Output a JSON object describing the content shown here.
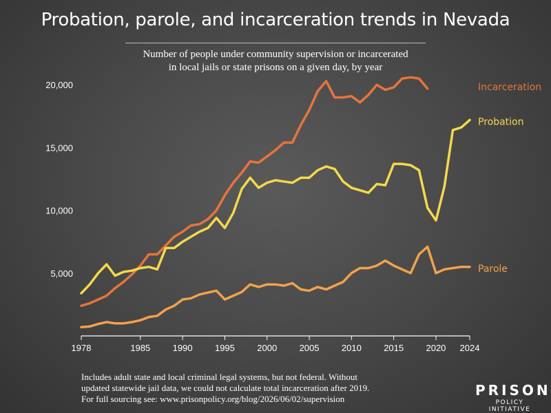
{
  "title": "Probation, parole, and incarceration trends in Nevada",
  "subtitle_line1": "Number of people under community supervision or incarcerated",
  "subtitle_line2": "in local jails or state prisons on a given day, by year",
  "footnote_line1": "Includes adult state and local criminal legal systems, but not federal. Without",
  "footnote_line2": "updated statewide jail data, we could not calculate total incarceration after 2019.",
  "footnote_line3": "For full sourcing see: www.prisonpolicy.org/blog/2026/06/02/supervision",
  "logo": {
    "main": "PRISON",
    "sub": "POLICY INITIATIVE"
  },
  "colors": {
    "incarceration": "#e8743b",
    "probation": "#f5d94a",
    "parole": "#f3a24b",
    "axis": "#ffffff"
  },
  "chart_data": {
    "type": "line",
    "xlim": [
      1978,
      2024
    ],
    "ylim": [
      0,
      21000
    ],
    "x_ticks": [
      1978,
      1985,
      1990,
      1995,
      2000,
      2005,
      2010,
      2015,
      2020,
      2024
    ],
    "y_ticks": [
      5000,
      10000,
      15000,
      20000
    ],
    "y_tick_labels": [
      "5,000",
      "10,000",
      "15,000",
      "20,000"
    ],
    "series": [
      {
        "name": "Incarceration",
        "color": "#e8743b",
        "x": [
          1978,
          1979,
          1980,
          1981,
          1982,
          1983,
          1984,
          1985,
          1986,
          1987,
          1988,
          1989,
          1990,
          1991,
          1992,
          1993,
          1994,
          1995,
          1996,
          1997,
          1998,
          1999,
          2000,
          2001,
          2002,
          2003,
          2004,
          2005,
          2006,
          2007,
          2008,
          2009,
          2010,
          2011,
          2012,
          2013,
          2014,
          2015,
          2016,
          2017,
          2018,
          2019
        ],
        "y": [
          2400,
          2600,
          2900,
          3200,
          3800,
          4300,
          4900,
          5600,
          6500,
          6500,
          7200,
          7900,
          8300,
          8800,
          8900,
          9300,
          10000,
          11200,
          12200,
          13000,
          13900,
          13800,
          14300,
          14800,
          15400,
          15400,
          16800,
          18000,
          19500,
          20300,
          19000,
          19000,
          19100,
          18600,
          19200,
          20000,
          19600,
          19800,
          20500,
          20600,
          20500,
          19700
        ]
      },
      {
        "name": "Probation",
        "color": "#f5d94a",
        "x": [
          1978,
          1979,
          1980,
          1981,
          1982,
          1983,
          1984,
          1985,
          1986,
          1987,
          1988,
          1989,
          1990,
          1991,
          1992,
          1993,
          1994,
          1995,
          1996,
          1997,
          1998,
          1999,
          2000,
          2001,
          2002,
          2003,
          2004,
          2005,
          2006,
          2007,
          2008,
          2009,
          2010,
          2011,
          2012,
          2013,
          2014,
          2015,
          2016,
          2017,
          2018,
          2019,
          2020,
          2021,
          2022,
          2023,
          2024
        ],
        "y": [
          3400,
          4100,
          5000,
          5700,
          4800,
          5100,
          5200,
          5400,
          5500,
          5300,
          7000,
          7000,
          7500,
          7900,
          8300,
          8600,
          9400,
          8600,
          9800,
          11700,
          12600,
          11800,
          12200,
          12400,
          12300,
          12200,
          12600,
          12600,
          13200,
          13500,
          13300,
          12300,
          11800,
          11600,
          11400,
          12100,
          12000,
          13700,
          13700,
          13600,
          13200,
          10200,
          9200,
          11900,
          16400,
          16600,
          17200
        ]
      },
      {
        "name": "Parole",
        "color": "#f3a24b",
        "x": [
          1978,
          1979,
          1980,
          1981,
          1982,
          1983,
          1984,
          1985,
          1986,
          1987,
          1988,
          1989,
          1990,
          1991,
          1992,
          1993,
          1994,
          1995,
          1996,
          1997,
          1998,
          1999,
          2000,
          2001,
          2002,
          2003,
          2004,
          2005,
          2006,
          2007,
          2008,
          2009,
          2010,
          2011,
          2012,
          2013,
          2014,
          2015,
          2016,
          2017,
          2018,
          2019,
          2020,
          2021,
          2022,
          2023,
          2024
        ],
        "y": [
          700,
          750,
          950,
          1100,
          1000,
          1000,
          1100,
          1250,
          1500,
          1600,
          2100,
          2400,
          2900,
          3000,
          3300,
          3450,
          3600,
          2900,
          3200,
          3500,
          4100,
          3900,
          4100,
          4100,
          4000,
          4200,
          3700,
          3600,
          3900,
          3700,
          4000,
          4300,
          5000,
          5400,
          5400,
          5600,
          6000,
          5600,
          5300,
          5000,
          6500,
          7100,
          5000,
          5300,
          5400,
          5500,
          5500
        ]
      }
    ]
  }
}
